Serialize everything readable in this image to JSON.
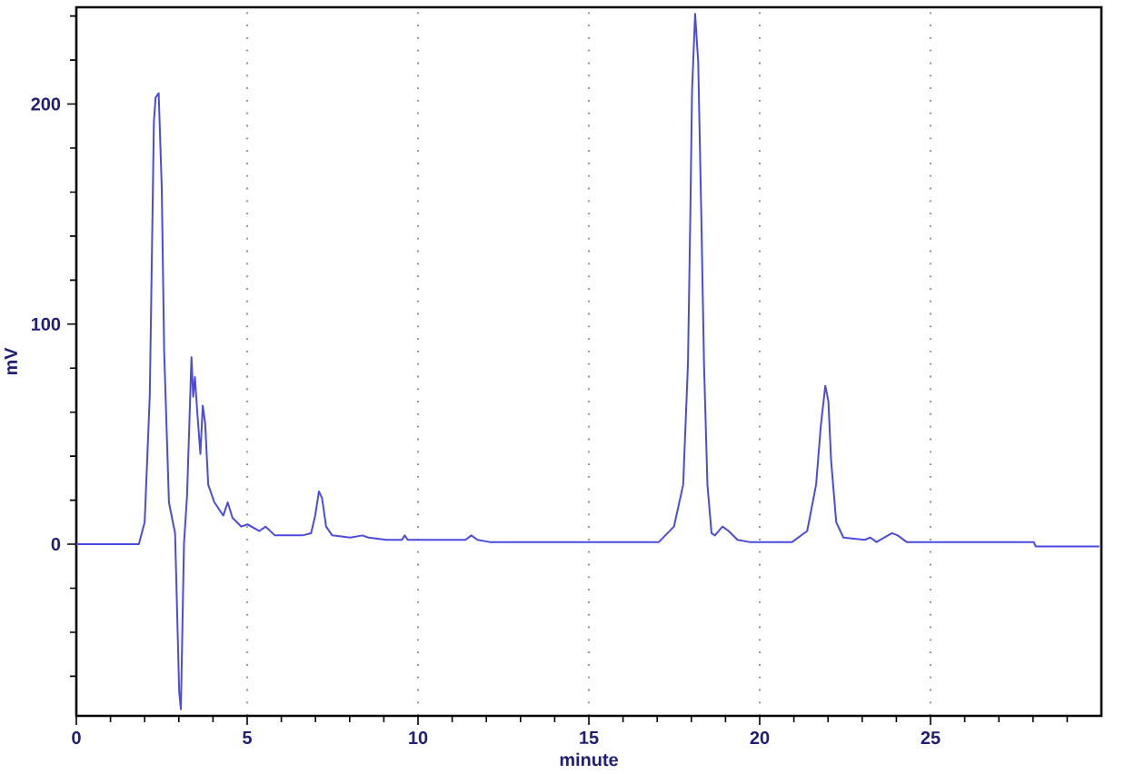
{
  "chart_data": {
    "type": "line",
    "xlabel": "minute",
    "ylabel": "mV",
    "x": [
      0,
      1.83,
      2.0,
      2.15,
      2.27,
      2.32,
      2.41,
      2.5,
      2.57,
      2.71,
      2.89,
      3.01,
      3.06,
      3.15,
      3.24,
      3.37,
      3.42,
      3.47,
      3.54,
      3.63,
      3.7,
      3.77,
      3.86,
      4.04,
      4.3,
      4.43,
      4.57,
      4.83,
      5.01,
      5.36,
      5.54,
      5.81,
      6.61,
      6.87,
      6.99,
      7.1,
      7.19,
      7.31,
      7.49,
      8.02,
      8.37,
      8.55,
      9.08,
      9.53,
      9.61,
      9.7,
      11.39,
      11.56,
      11.74,
      12.09,
      17.05,
      17.49,
      17.76,
      17.9,
      17.97,
      18.02,
      18.11,
      18.2,
      18.29,
      18.37,
      18.47,
      18.59,
      18.69,
      18.91,
      19.09,
      19.35,
      19.7,
      20.95,
      21.39,
      21.65,
      21.79,
      21.92,
      22.01,
      22.09,
      22.24,
      22.45,
      23.07,
      23.24,
      23.42,
      23.87,
      24.04,
      24.3,
      28.02,
      28.08,
      29.94
    ],
    "series": [
      {
        "color": "#4b4be0",
        "values": [
          0,
          0,
          10,
          68,
          192,
          203,
          205,
          162,
          88,
          19,
          5,
          -67,
          -75,
          0,
          22,
          85,
          67,
          76,
          60,
          41,
          63,
          55,
          27,
          19,
          13,
          19,
          12,
          8,
          9,
          6,
          8,
          4,
          4,
          5,
          13,
          24,
          21,
          8,
          4,
          3,
          4,
          3,
          2,
          2,
          4,
          2,
          2,
          4,
          2,
          1,
          1,
          8,
          27,
          82,
          150,
          206,
          241,
          219,
          150,
          82,
          27,
          5,
          4,
          8,
          6,
          2,
          1,
          1,
          6,
          27,
          54,
          72,
          65,
          38,
          10,
          3,
          2,
          3,
          1,
          5,
          4,
          1,
          1,
          -1,
          -1
        ]
      }
    ],
    "xlim": [
      0,
      30
    ],
    "ylim": [
      -78,
      244
    ],
    "xticks": [
      0,
      {
        "value": 1,
        "label": null
      },
      {
        "value": 2,
        "label": null
      },
      {
        "value": 3,
        "label": null
      },
      {
        "value": 4,
        "label": null
      },
      5,
      {
        "value": 6,
        "label": null
      },
      {
        "value": 7,
        "label": null
      },
      {
        "value": 8,
        "label": null
      },
      {
        "value": 9,
        "label": null
      },
      10,
      {
        "value": 11,
        "label": null
      },
      {
        "value": 12,
        "label": null
      },
      {
        "value": 13,
        "label": null
      },
      {
        "value": 14,
        "label": null
      },
      15,
      {
        "value": 16,
        "label": null
      },
      {
        "value": 17,
        "label": null
      },
      {
        "value": 18,
        "label": null
      },
      {
        "value": 19,
        "label": null
      },
      20,
      {
        "value": 21,
        "label": null
      },
      {
        "value": 22,
        "label": null
      },
      {
        "value": 23,
        "label": null
      },
      {
        "value": 24,
        "label": null
      },
      25,
      {
        "value": 26,
        "label": null
      },
      {
        "value": 27,
        "label": null
      },
      {
        "value": 28,
        "label": null
      },
      {
        "value": 29,
        "label": null
      }
    ],
    "yticks": [
      {
        "value": -60,
        "label": null
      },
      {
        "value": -40,
        "label": null
      },
      {
        "value": -20,
        "label": null
      },
      0,
      {
        "value": 20,
        "label": null
      },
      {
        "value": 40,
        "label": null
      },
      {
        "value": 60,
        "label": null
      },
      {
        "value": 80,
        "label": null
      },
      100,
      {
        "value": 120,
        "label": null
      },
      {
        "value": 140,
        "label": null
      },
      {
        "value": 160,
        "label": null
      },
      {
        "value": 180,
        "label": null
      },
      200,
      {
        "value": 220,
        "label": null
      },
      {
        "value": 240,
        "label": null
      }
    ],
    "grid": "x"
  }
}
